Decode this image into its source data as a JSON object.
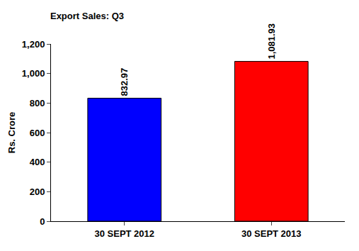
{
  "chart_data": {
    "type": "bar",
    "title": "Export Sales: Q3",
    "y_label": "Rs. Crore",
    "categories": [
      "30 SEPT 2012",
      "30 SEPT 2013"
    ],
    "values": [
      832.97,
      1081.93
    ],
    "value_labels": [
      "832.97",
      "1,081.93"
    ],
    "colors": [
      "#0000ff",
      "#ff0000"
    ],
    "ylim": [
      0,
      1200
    ],
    "yticks": [
      0,
      200,
      400,
      600,
      800,
      {
        "value": 1000,
        "label": "1,000"
      },
      {
        "value": 1200,
        "label": "1,200"
      }
    ],
    "grid": false,
    "data_labels": true
  }
}
